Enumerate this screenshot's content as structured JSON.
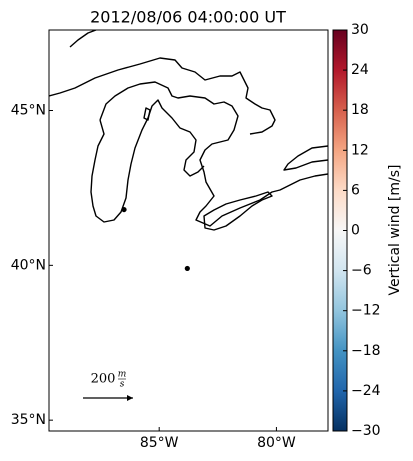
{
  "chart_data": {
    "type": "map",
    "title": "2012/08/06 04:00:00 UT",
    "xlim": [
      -89.7,
      -77.8
    ],
    "ylim": [
      34.65,
      47.6
    ],
    "xticks": [
      {
        "value": -85,
        "label": "85°W"
      },
      {
        "value": -80,
        "label": "80°W"
      }
    ],
    "yticks": [
      {
        "value": 45,
        "label": "45°N"
      },
      {
        "value": 40,
        "label": "40°N"
      },
      {
        "value": 35,
        "label": "35°N"
      }
    ],
    "points": {
      "x": [
        -86.5,
        -83.8
      ],
      "y": [
        41.8,
        39.9
      ],
      "color": "#000000"
    },
    "quiver_key": {
      "value": 200,
      "unit_numerator": "m",
      "unit_denominator": "s"
    },
    "colorbar": {
      "label": "Vertical wind [m/s]",
      "lim": [
        -30,
        30
      ],
      "ticks": [
        {
          "value": -30,
          "label": "−30"
        },
        {
          "value": -24,
          "label": "−24"
        },
        {
          "value": -18,
          "label": "−18"
        },
        {
          "value": -12,
          "label": "−12"
        },
        {
          "value": -6,
          "label": "−6"
        },
        0,
        6,
        12,
        18,
        24,
        30
      ]
    }
  }
}
